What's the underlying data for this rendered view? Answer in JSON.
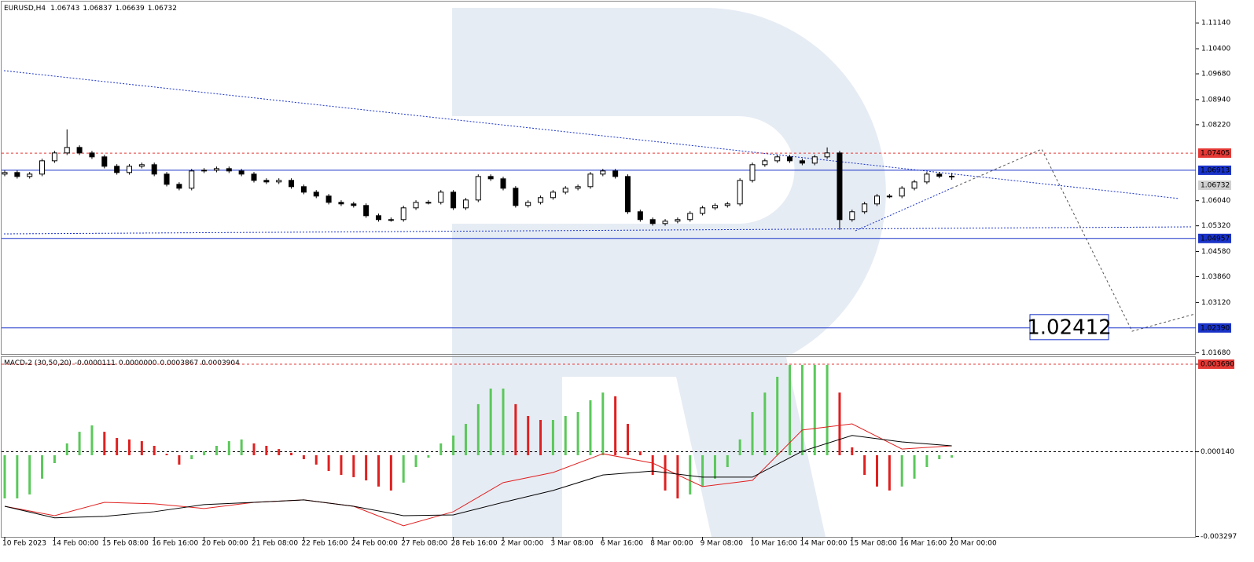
{
  "chart_data": [
    {
      "type": "candlestick",
      "title": "EURUSD,H4",
      "categories": [
        "10 Feb 2023",
        null,
        null,
        null,
        "14 Feb 00:00",
        null,
        null,
        null,
        "15 Feb 08:00",
        null,
        null,
        null,
        "16 Feb 16:00",
        null,
        null,
        null,
        "20 Feb 00:00",
        null,
        null,
        null,
        "21 Feb 08:00",
        null,
        null,
        null,
        "22 Feb 16:00",
        null,
        null,
        null,
        "24 Feb 00:00",
        null,
        null,
        null,
        "27 Feb 08:00",
        null,
        null,
        null,
        "28 Feb 16:00",
        null,
        null,
        null,
        "2 Mar 00:00",
        null,
        null,
        null,
        "3 Mar 08:00",
        null,
        null,
        null,
        "6 Mar 16:00",
        null,
        null,
        null,
        "8 Mar 00:00",
        null,
        null,
        null,
        "9 Mar 08:00",
        null,
        null,
        null,
        "10 Mar 16:00",
        null,
        null,
        null,
        "14 Mar 00:00",
        null,
        null,
        null,
        "15 Mar 08:00",
        null,
        null,
        null,
        "16 Mar 16:00",
        null,
        null,
        null,
        "20 Mar 00:00"
      ],
      "open": [
        1.06803,
        1.06848,
        1.06735,
        1.06803,
        1.07185,
        1.0741,
        1.07568,
        1.0741,
        1.07298,
        1.07028,
        1.06848,
        1.07028,
        1.07073,
        1.06803,
        1.0651,
        1.06398,
        1.06893,
        1.06915,
        1.0696,
        1.06893,
        1.06803,
        1.06623,
        1.06578,
        1.06623,
        1.06443,
        1.06285,
        1.06173,
        1.05993,
        1.05948,
        1.05903,
        1.0561,
        1.05498,
        1.05498,
        1.05835,
        1.05993,
        1.05993,
        1.06285,
        1.05835,
        1.0606,
        1.06735,
        1.06668,
        1.06398,
        1.05903,
        1.05993,
        1.06128,
        1.06285,
        1.06398,
        1.06443,
        1.06803,
        1.06893,
        1.06735,
        1.05723,
        1.05498,
        1.05385,
        1.05453,
        1.05498,
        1.05678,
        1.05835,
        1.05903,
        1.05948,
        1.06623,
        1.07073,
        1.07185,
        1.07298,
        1.07185,
        1.07118,
        1.07298,
        1.0741,
        1.05498,
        1.05723,
        1.05948,
        1.06173,
        1.06173,
        1.06398,
        1.06578,
        1.06803,
        1.06743
      ],
      "high": [
        1.06908,
        1.06908,
        1.06863,
        1.07245,
        1.0747,
        1.08086,
        1.07628,
        1.0747,
        1.07358,
        1.07088,
        1.07088,
        1.07133,
        1.07133,
        1.06863,
        1.0657,
        1.06953,
        1.06975,
        1.0702,
        1.0702,
        1.06953,
        1.06863,
        1.06683,
        1.06683,
        1.06683,
        1.06503,
        1.06345,
        1.06233,
        1.06053,
        1.06008,
        1.05963,
        1.0567,
        1.05558,
        1.05895,
        1.06053,
        1.06053,
        1.06345,
        1.06345,
        1.0612,
        1.06795,
        1.06795,
        1.06728,
        1.06458,
        1.06053,
        1.06188,
        1.06345,
        1.06458,
        1.06503,
        1.06863,
        1.06953,
        1.06953,
        1.06795,
        1.05783,
        1.05558,
        1.05513,
        1.05558,
        1.05738,
        1.05895,
        1.05963,
        1.06008,
        1.06683,
        1.07133,
        1.07245,
        1.07358,
        1.07358,
        1.07245,
        1.07358,
        1.07568,
        1.0747,
        1.05783,
        1.06008,
        1.06233,
        1.06233,
        1.06458,
        1.06638,
        1.06863,
        1.06863,
        1.06837
      ],
      "low": [
        1.06743,
        1.06675,
        1.06675,
        1.06743,
        1.07125,
        1.0735,
        1.0735,
        1.07238,
        1.06968,
        1.06788,
        1.06788,
        1.06968,
        1.06743,
        1.0645,
        1.06338,
        1.06338,
        1.06833,
        1.06855,
        1.06833,
        1.06743,
        1.06563,
        1.06518,
        1.06518,
        1.06383,
        1.06225,
        1.06113,
        1.05933,
        1.05888,
        1.05843,
        1.0555,
        1.05438,
        1.05438,
        1.05438,
        1.05775,
        1.05933,
        1.05933,
        1.05775,
        1.05775,
        1.06,
        1.06608,
        1.06338,
        1.05843,
        1.05843,
        1.05933,
        1.06068,
        1.06225,
        1.06338,
        1.06383,
        1.06743,
        1.06675,
        1.05663,
        1.05438,
        1.05325,
        1.05325,
        1.05393,
        1.05438,
        1.05618,
        1.05775,
        1.05843,
        1.05888,
        1.06563,
        1.07013,
        1.07125,
        1.07125,
        1.07058,
        1.07058,
        1.07238,
        1.05206,
        1.05438,
        1.05663,
        1.05888,
        1.06113,
        1.06113,
        1.06338,
        1.06518,
        1.06683,
        1.06639
      ],
      "close": [
        1.06848,
        1.06735,
        1.06803,
        1.07185,
        1.0741,
        1.07568,
        1.0741,
        1.07298,
        1.07028,
        1.06848,
        1.07028,
        1.07073,
        1.06803,
        1.0651,
        1.06398,
        1.06893,
        1.06915,
        1.0696,
        1.06893,
        1.06803,
        1.06623,
        1.06578,
        1.06623,
        1.06443,
        1.06285,
        1.06173,
        1.05993,
        1.05948,
        1.05903,
        1.0561,
        1.05498,
        1.05498,
        1.05835,
        1.05993,
        1.05993,
        1.06285,
        1.05835,
        1.0606,
        1.06735,
        1.06668,
        1.06398,
        1.05903,
        1.05993,
        1.06128,
        1.06285,
        1.06398,
        1.06443,
        1.06803,
        1.06893,
        1.06735,
        1.05723,
        1.05498,
        1.05385,
        1.05453,
        1.05498,
        1.05678,
        1.05835,
        1.05903,
        1.05948,
        1.06623,
        1.07073,
        1.07185,
        1.07298,
        1.07185,
        1.07118,
        1.07298,
        1.0741,
        1.05498,
        1.05723,
        1.05948,
        1.06173,
        1.06173,
        1.06398,
        1.06578,
        1.06803,
        1.06743,
        1.06732
      ],
      "up_color": "#ffffff",
      "down_color": "#000000",
      "ylim": [
        1.0162,
        1.1173
      ],
      "yticks": [
        {
          "value": 1.1114,
          "label": "1.11140"
        },
        {
          "value": 1.104,
          "label": "1.10400"
        },
        {
          "value": 1.0968,
          "label": "1.09680"
        },
        {
          "value": 1.0894,
          "label": "1.08940"
        },
        {
          "value": 1.0822,
          "label": "1.08220"
        },
        {
          "value": 1.0604,
          "label": "1.06040"
        },
        {
          "value": 1.0532,
          "label": "1.05320"
        },
        {
          "value": 1.0458,
          "label": "1.04580"
        },
        {
          "value": 1.0386,
          "label": "1.03860"
        },
        {
          "value": 1.0312,
          "label": "1.03120"
        },
        {
          "value": 1.0168,
          "label": "1.01680"
        }
      ],
      "levels": [
        1.07405,
        1.06913,
        1.04957,
        {
          "value": 1.0239,
          "label": "1.02390"
        }
      ],
      "level_colors": [
        "#e53935",
        "#1a33c8",
        "#1a33c8",
        "#1a33c8"
      ],
      "annotation": "1.02412"
    },
    {
      "type": "macd",
      "title": "MACD-2 (30,50,20)",
      "header_values": [
        "-0.0000111",
        "0.0000000",
        "0.0003867",
        "0.0003904"
      ],
      "histogram": [
        -0.00175,
        -0.00175,
        -0.00159,
        -0.00095,
        -0.00032,
        0.00048,
        0.00095,
        0.00121,
        0.00095,
        0.0007,
        0.00064,
        0.00057,
        0.00038,
        6e-05,
        -0.00038,
        -0.00016,
        0.00016,
        0.00038,
        0.00057,
        0.00064,
        0.00048,
        0.00038,
        0.00025,
        0.0001,
        -0.00016,
        -0.00038,
        -0.00064,
        -0.0008,
        -0.00089,
        -0.00102,
        -0.00127,
        -0.00143,
        -0.00111,
        -0.00048,
        -0.0001,
        0.00048,
        0.0008,
        0.00127,
        0.00207,
        0.0027,
        0.0027,
        0.00207,
        0.00159,
        0.00143,
        0.00143,
        0.00159,
        0.00175,
        0.00223,
        0.00254,
        0.00239,
        0.00127,
        0.00016,
        -0.0008,
        -0.00143,
        -0.00175,
        -0.00159,
        -0.00127,
        -0.00095,
        -0.00048,
        0.00064,
        0.00175,
        0.00254,
        0.00318,
        0.00366,
        0.00366,
        0.00366,
        0.00366,
        0.00254,
        0.00032,
        -0.0008,
        -0.00127,
        -0.00143,
        -0.00127,
        -0.00095,
        -0.00048,
        -0.00016,
        -0.0001
      ],
      "up_color": "#5ac85a",
      "down_color": "#e02020",
      "x": [
        0,
        4,
        8,
        12,
        16,
        20,
        24,
        28,
        32,
        36,
        40,
        44,
        48,
        52,
        56,
        60,
        64,
        68,
        72,
        76
      ],
      "series": [
        {
          "color": "#e02020",
          "values": [
            -0.00207,
            -0.00245,
            -0.00191,
            -0.00197,
            -0.00216,
            -0.00191,
            -0.00181,
            -0.00207,
            -0.00286,
            -0.00229,
            -0.00111,
            -0.0007,
            6e-05,
            -0.00032,
            -0.00127,
            -0.00102,
            0.00102,
            0.00127,
            0.00025,
            0.00038
          ]
        },
        {
          "color": "#000000",
          "values": [
            -0.00207,
            -0.00254,
            -0.00248,
            -0.00229,
            -0.002,
            -0.00191,
            -0.00181,
            -0.00207,
            -0.00245,
            -0.00242,
            -0.00191,
            -0.00143,
            -0.0008,
            -0.00064,
            -0.00089,
            -0.00089,
            0.00016,
            0.0008,
            0.00054,
            0.00038
          ]
        }
      ],
      "y2lim": [
        -0.00331,
        0.00388
      ],
      "y2ticks": [
        {
          "value": 0.00369,
          "label": "0.003690"
        },
        {
          "value": 0.00014,
          "label": "0.000140"
        },
        {
          "value": -0.003297,
          "label": "-0.003297"
        }
      ]
    }
  ]
}
